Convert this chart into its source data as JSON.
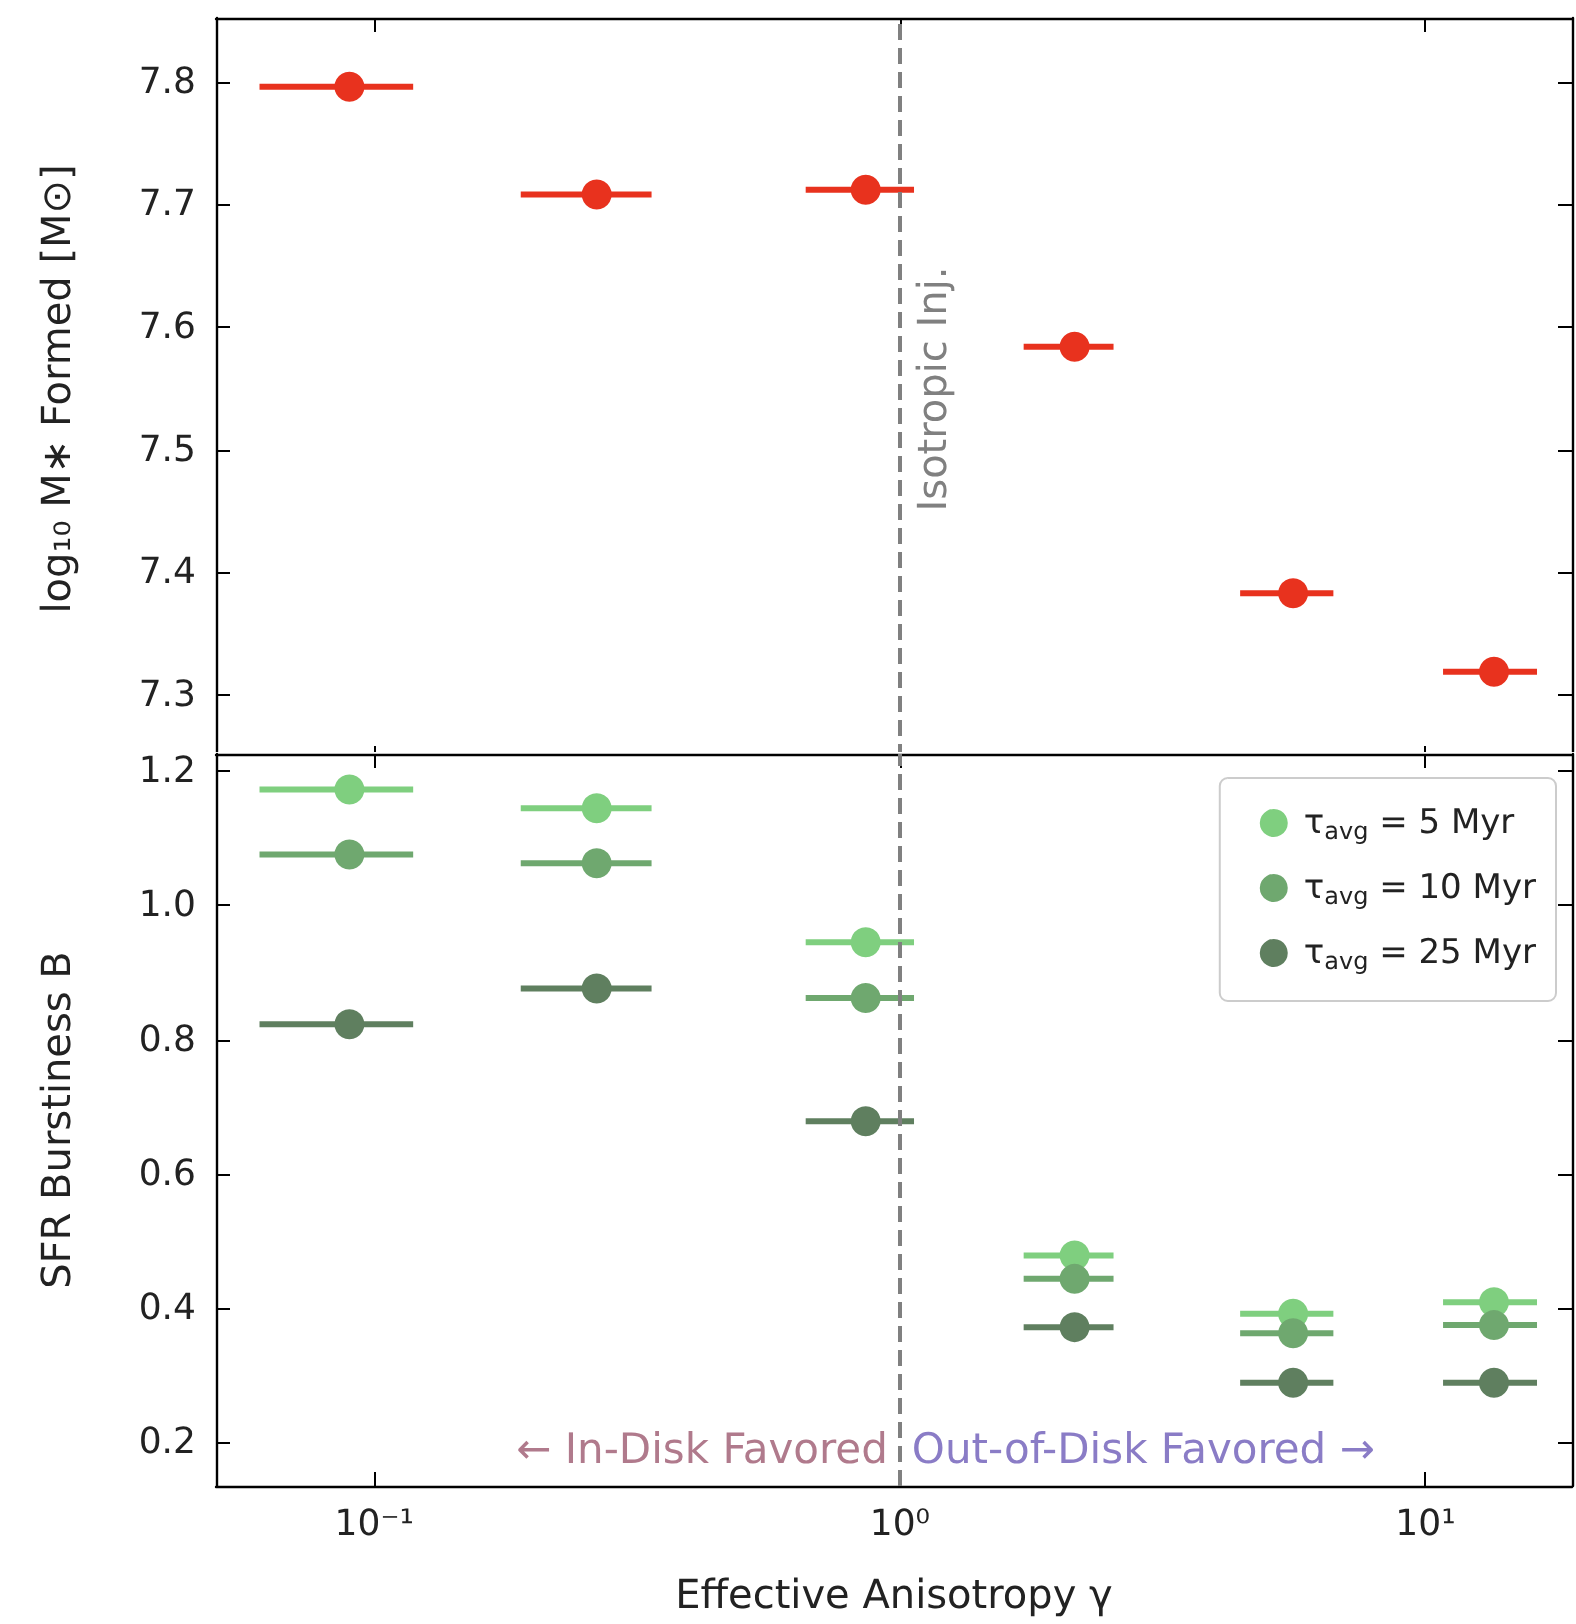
{
  "chart_data": [
    {
      "type": "scatter",
      "ylabel": "log₁₀ M∗ Formed [M⊙]",
      "log": "x",
      "xlim": [
        0.05,
        19
      ],
      "ylim": [
        7.247,
        7.852
      ],
      "xticks": [
        {
          "value": 0.1,
          "label": null
        },
        {
          "value": 1,
          "label": null
        },
        {
          "value": 10,
          "label": null
        }
      ],
      "yticks": [
        7.3,
        7.4,
        7.5,
        7.6,
        7.7,
        7.8
      ],
      "tick_labels": "y",
      "marker": "circle",
      "x": [
        0.0897,
        0.265,
        0.861,
        2.15,
        5.6,
        13.5
      ],
      "series": [
        {
          "color": "#e8321e",
          "values": [
            7.796,
            7.708,
            7.712,
            7.584,
            7.383,
            7.319
          ],
          "xerrors": [
            [
              0.0605,
              0.1186
            ],
            [
              0.19,
              0.337
            ],
            [
              0.662,
              1.064
            ],
            [
              1.72,
              2.55
            ],
            [
              4.44,
              6.68
            ],
            [
              10.8,
              16.3
            ]
          ]
        }
      ],
      "ref_lines": [
        {
          "axis": "x",
          "value": 1,
          "label": "Isotropic Inj.",
          "color": "#808080",
          "line_style": "dashed"
        }
      ]
    },
    {
      "type": "scatter",
      "xlabel": "Effective Anisotropy γ",
      "ylabel": "SFR Burstiness B",
      "log": "x",
      "xlim": [
        0.05,
        19
      ],
      "ylim": [
        0.134,
        1.226
      ],
      "xticks": [
        {
          "value": 0.1,
          "label": "10⁻¹"
        },
        {
          "value": 1,
          "label": "10⁰"
        },
        {
          "value": 10,
          "label": "10¹"
        }
      ],
      "yticks": [
        0.2,
        0.4,
        0.6,
        0.8,
        {
          "value": 1,
          "label": "1.0"
        },
        1.2
      ],
      "marker": "circle",
      "legend": "top right",
      "x": [
        0.0897,
        0.265,
        0.861,
        2.15,
        5.6,
        13.5
      ],
      "series": [
        {
          "name": "τ$_{avg}$ = 5 Myr",
          "color": "#7fcf7f",
          "values": [
            1.173,
            1.145,
            0.945,
            0.478,
            0.391,
            0.408
          ],
          "xerrors": [
            [
              0.0605,
              0.1186
            ],
            [
              0.19,
              0.337
            ],
            [
              0.662,
              1.064
            ],
            [
              1.72,
              2.55
            ],
            [
              4.44,
              6.68
            ],
            [
              10.8,
              16.3
            ]
          ]
        },
        {
          "name": "τ$_{avg}$ = 10 Myr",
          "color": "#6fa86f",
          "values": [
            1.076,
            1.063,
            0.862,
            0.443,
            0.362,
            0.374
          ],
          "xerrors": [
            [
              0.0605,
              0.1186
            ],
            [
              0.19,
              0.337
            ],
            [
              0.662,
              1.064
            ],
            [
              1.72,
              2.55
            ],
            [
              4.44,
              6.68
            ],
            [
              10.8,
              16.3
            ]
          ]
        },
        {
          "name": "τ$_{avg}$ = 25 Myr",
          "color": "#5f7f5f",
          "values": [
            0.823,
            0.876,
            0.678,
            0.371,
            0.288,
            0.288
          ],
          "xerrors": [
            [
              0.0605,
              0.1186
            ],
            [
              0.19,
              0.337
            ],
            [
              0.662,
              1.064
            ],
            [
              1.72,
              2.55
            ],
            [
              4.44,
              6.68
            ],
            [
              10.8,
              16.3
            ]
          ]
        }
      ],
      "ref_lines": [
        {
          "axis": "x",
          "value": 1,
          "color": "#808080",
          "line_style": "dashed"
        }
      ],
      "annotations": [
        "← In-Disk Favored",
        "Out-of-Disk Favored →"
      ]
    }
  ]
}
